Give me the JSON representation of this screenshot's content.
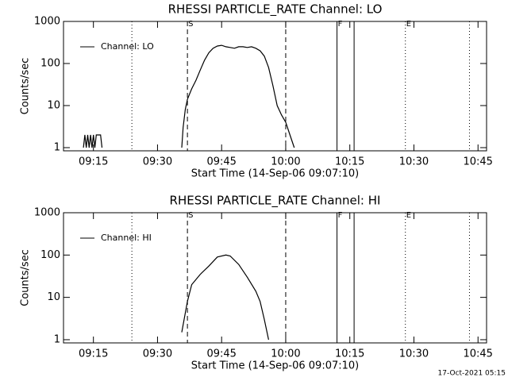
{
  "chart_data": [
    {
      "type": "line",
      "title": "RHESSI PARTICLE_RATE Channel: LO",
      "x_label": "Start Time (14-Sep-06 09:07:10)",
      "y_label": "Counts/sec",
      "log_y": true,
      "legend": "upper-left",
      "xlim": [
        "09:08:00",
        "10:47:00"
      ],
      "xticks": [
        "09:15",
        "09:30",
        "09:45",
        "10:00",
        "10:15",
        "10:30",
        "10:45"
      ],
      "ylim": [
        0.84,
        1000
      ],
      "yticks": [
        1,
        10,
        100,
        1000
      ],
      "markers": [
        {
          "x": "09:24",
          "style": "dotted"
        },
        {
          "x": "09:37",
          "style": "dashed",
          "label": "S"
        },
        {
          "x": "10:00",
          "style": "dashed"
        },
        {
          "x": "10:12",
          "style": "solid",
          "label": "F"
        },
        {
          "x": "10:16",
          "style": "solid"
        },
        {
          "x": "10:28",
          "style": "dotted",
          "label": "E"
        },
        {
          "x": "10:43",
          "style": "dotted"
        }
      ],
      "x": [
        "09:12:40",
        "09:13:00",
        "09:13:20",
        "09:13:40",
        "09:14:00",
        "09:14:20",
        "09:14:40",
        "09:15:00",
        "09:15:20",
        "09:15:40",
        "09:16:40",
        "09:17:00",
        "09:25:00",
        "09:35:40",
        "09:36:00",
        "09:36:30",
        "09:37:00",
        "09:38:00",
        "09:39:00",
        "09:40:00",
        "09:41:00",
        "09:42:00",
        "09:43:00",
        "09:44:00",
        "09:45:00",
        "09:46:00",
        "09:47:00",
        "09:48:00",
        "09:49:00",
        "09:50:00",
        "09:51:00",
        "09:52:00",
        "09:53:00",
        "09:54:00",
        "09:55:00",
        "09:56:00",
        "09:57:00",
        "09:58:00",
        "09:59:00",
        "10:00:00",
        "10:01:00",
        "10:02:00"
      ],
      "series": [
        {
          "name": "Channel: LO",
          "color": "#000000",
          "values": [
            1,
            2,
            1,
            2,
            1,
            2,
            1,
            2,
            1,
            2,
            2,
            1,
            null,
            1,
            3,
            8,
            14,
            25,
            40,
            70,
            120,
            180,
            230,
            260,
            270,
            250,
            240,
            230,
            250,
            250,
            240,
            250,
            230,
            200,
            150,
            80,
            30,
            10,
            6,
            4,
            2,
            1
          ]
        }
      ]
    },
    {
      "type": "line",
      "title": "RHESSI PARTICLE_RATE Channel: HI",
      "x_label": "Start Time (14-Sep-06 09:07:10)",
      "y_label": "Counts/sec",
      "log_y": true,
      "legend": "upper-left",
      "xlim": [
        "09:08:00",
        "10:47:00"
      ],
      "xticks": [
        "09:15",
        "09:30",
        "09:45",
        "10:00",
        "10:15",
        "10:30",
        "10:45"
      ],
      "ylim": [
        0.84,
        1000
      ],
      "yticks": [
        1,
        10,
        100,
        1000
      ],
      "markers": [
        {
          "x": "09:24",
          "style": "dotted"
        },
        {
          "x": "09:37",
          "style": "dashed",
          "label": "S"
        },
        {
          "x": "10:00",
          "style": "dashed"
        },
        {
          "x": "10:12",
          "style": "solid",
          "label": "F"
        },
        {
          "x": "10:16",
          "style": "solid"
        },
        {
          "x": "10:28",
          "style": "dotted",
          "label": "E"
        },
        {
          "x": "10:43",
          "style": "dotted"
        }
      ],
      "x": [
        "09:35:40",
        "09:37:00",
        "09:38:00",
        "09:40:00",
        "09:42:00",
        "09:44:00",
        "09:46:00",
        "09:47:00",
        "09:49:00",
        "09:51:00",
        "09:53:00",
        "09:54:00",
        "09:55:00",
        "09:56:00"
      ],
      "series": [
        {
          "name": "Channel: HI",
          "color": "#000000",
          "values": [
            1.5,
            8,
            20,
            35,
            55,
            90,
            100,
            95,
            60,
            30,
            14,
            8,
            3,
            1
          ]
        }
      ]
    }
  ],
  "footer": "17-Oct-2021 05:15"
}
